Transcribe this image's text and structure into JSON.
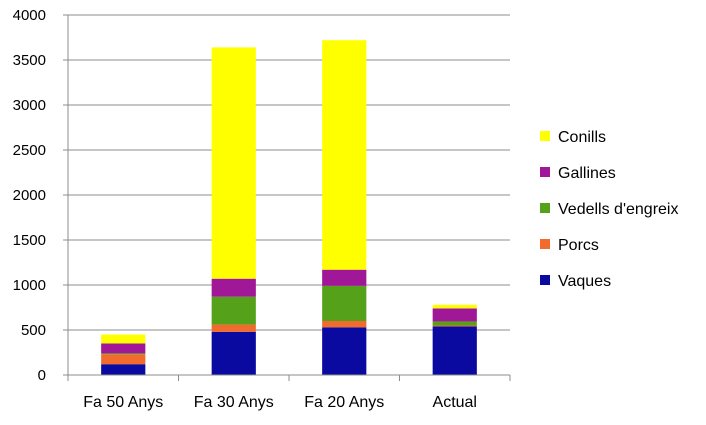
{
  "chart_data": {
    "type": "bar",
    "stacked": true,
    "title": "",
    "xlabel": "",
    "ylabel": "",
    "ylim": [
      0,
      4000
    ],
    "yticks": [
      0,
      500,
      1000,
      1500,
      2000,
      2500,
      3000,
      3500,
      4000
    ],
    "grid": true,
    "legend_position": "right",
    "categories": [
      "Fa 50 Anys",
      "Fa 30 Anys",
      "Fa 20 Anys",
      "Actual"
    ],
    "series": [
      {
        "name": "Vaques",
        "color": "#0a0aa0",
        "values": [
          120,
          480,
          530,
          540
        ]
      },
      {
        "name": "Porcs",
        "color": "#f26b2c",
        "values": [
          110,
          80,
          70,
          10
        ]
      },
      {
        "name": "Vedells d'engreix",
        "color": "#55a21a",
        "values": [
          10,
          310,
          390,
          45
        ]
      },
      {
        "name": "Gallines",
        "color": "#a01898",
        "values": [
          110,
          200,
          180,
          145
        ]
      },
      {
        "name": "Conills",
        "color": "#ffff00",
        "values": [
          100,
          2570,
          2550,
          40
        ]
      }
    ]
  }
}
